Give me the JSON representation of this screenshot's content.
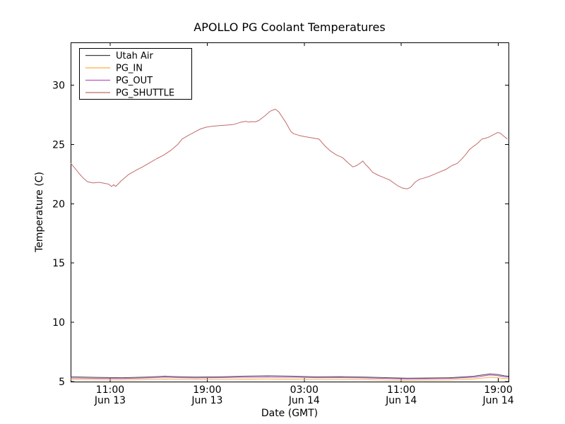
{
  "figure": {
    "background": "#ffffff",
    "spine_color": "#000000"
  },
  "chart_data": {
    "type": "line",
    "title": "APOLLO PG Coolant Temperatures",
    "xlabel": "Date (GMT)",
    "ylabel": "Temperature (C)",
    "x_unit": "hours since Jun 13 00:00 GMT",
    "xlim": [
      7.74,
      43.84
    ],
    "ylim": [
      5,
      33.6
    ],
    "grid": false,
    "legend_position": "upper-left",
    "x_ticks": [
      {
        "hour": 11,
        "time": "11:00",
        "date": "Jun 13"
      },
      {
        "hour": 19,
        "time": "19:00",
        "date": "Jun 13"
      },
      {
        "hour": 27,
        "time": "03:00",
        "date": "Jun 14"
      },
      {
        "hour": 35,
        "time": "11:00",
        "date": "Jun 14"
      },
      {
        "hour": 43,
        "time": "19:00",
        "date": "Jun 14"
      }
    ],
    "y_ticks": [
      5,
      10,
      15,
      20,
      25,
      30
    ],
    "series": [
      {
        "name": "Utah Air",
        "color": "#3f3f3f",
        "points": [
          [
            7.74,
            5.4
          ],
          [
            10,
            5.35
          ],
          [
            12,
            5.32
          ],
          [
            14,
            5.38
          ],
          [
            15.5,
            5.45
          ],
          [
            16.5,
            5.42
          ],
          [
            18,
            5.38
          ],
          [
            20,
            5.4
          ],
          [
            22,
            5.45
          ],
          [
            24,
            5.48
          ],
          [
            26,
            5.45
          ],
          [
            28,
            5.4
          ],
          [
            30,
            5.42
          ],
          [
            32,
            5.38
          ],
          [
            34,
            5.32
          ],
          [
            35.5,
            5.28
          ],
          [
            37,
            5.3
          ],
          [
            39,
            5.32
          ],
          [
            41,
            5.45
          ],
          [
            42.3,
            5.65
          ],
          [
            42.9,
            5.6
          ],
          [
            43.5,
            5.48
          ],
          [
            43.84,
            5.45
          ]
        ]
      },
      {
        "name": "PG_IN",
        "color": "#ffad42",
        "points": [
          [
            7.74,
            5.18
          ],
          [
            10,
            5.15
          ],
          [
            12,
            5.13
          ],
          [
            14,
            5.16
          ],
          [
            15.5,
            5.2
          ],
          [
            16.5,
            5.18
          ],
          [
            18,
            5.16
          ],
          [
            20,
            5.17
          ],
          [
            22,
            5.2
          ],
          [
            24,
            5.22
          ],
          [
            26,
            5.2
          ],
          [
            28,
            5.17
          ],
          [
            30,
            5.18
          ],
          [
            32,
            5.16
          ],
          [
            34,
            5.12
          ],
          [
            35.5,
            5.1
          ],
          [
            37,
            5.12
          ],
          [
            39,
            5.14
          ],
          [
            41,
            5.22
          ],
          [
            42.3,
            5.36
          ],
          [
            42.9,
            5.33
          ],
          [
            43.5,
            5.26
          ],
          [
            43.84,
            5.24
          ]
        ]
      },
      {
        "name": "PG_OUT",
        "color": "#b857c4",
        "points": [
          [
            7.74,
            5.3
          ],
          [
            10,
            5.27
          ],
          [
            12,
            5.25
          ],
          [
            14,
            5.3
          ],
          [
            15.5,
            5.35
          ],
          [
            16.5,
            5.33
          ],
          [
            18,
            5.3
          ],
          [
            20,
            5.32
          ],
          [
            22,
            5.36
          ],
          [
            24,
            5.38
          ],
          [
            26,
            5.36
          ],
          [
            28,
            5.32
          ],
          [
            30,
            5.33
          ],
          [
            32,
            5.3
          ],
          [
            34,
            5.25
          ],
          [
            35.5,
            5.22
          ],
          [
            37,
            5.24
          ],
          [
            39,
            5.26
          ],
          [
            41,
            5.36
          ],
          [
            42.3,
            5.54
          ],
          [
            42.9,
            5.5
          ],
          [
            43.5,
            5.4
          ],
          [
            43.84,
            5.38
          ]
        ]
      },
      {
        "name": "PG_SHUTTLE",
        "color": "#c26a6a",
        "points": [
          [
            7.74,
            23.42
          ],
          [
            8.09,
            23.0
          ],
          [
            8.44,
            22.55
          ],
          [
            8.79,
            22.15
          ],
          [
            9.14,
            21.85
          ],
          [
            9.6,
            21.75
          ],
          [
            10.07,
            21.8
          ],
          [
            10.53,
            21.72
          ],
          [
            10.88,
            21.65
          ],
          [
            11.11,
            21.45
          ],
          [
            11.29,
            21.6
          ],
          [
            11.46,
            21.45
          ],
          [
            11.93,
            21.95
          ],
          [
            12.51,
            22.45
          ],
          [
            13.09,
            22.8
          ],
          [
            13.67,
            23.1
          ],
          [
            14.26,
            23.45
          ],
          [
            14.84,
            23.8
          ],
          [
            15.42,
            24.1
          ],
          [
            16.0,
            24.5
          ],
          [
            16.58,
            25.0
          ],
          [
            16.93,
            25.45
          ],
          [
            17.17,
            25.6
          ],
          [
            17.51,
            25.8
          ],
          [
            17.98,
            26.05
          ],
          [
            18.44,
            26.3
          ],
          [
            18.91,
            26.45
          ],
          [
            19.38,
            26.52
          ],
          [
            19.96,
            26.58
          ],
          [
            20.54,
            26.62
          ],
          [
            21.12,
            26.67
          ],
          [
            21.7,
            26.85
          ],
          [
            22.17,
            26.95
          ],
          [
            22.4,
            26.88
          ],
          [
            22.63,
            26.92
          ],
          [
            22.98,
            26.9
          ],
          [
            23.27,
            27.02
          ],
          [
            23.74,
            27.4
          ],
          [
            24.2,
            27.8
          ],
          [
            24.61,
            27.97
          ],
          [
            24.9,
            27.75
          ],
          [
            25.48,
            26.85
          ],
          [
            25.89,
            26.1
          ],
          [
            26.12,
            25.9
          ],
          [
            26.59,
            25.75
          ],
          [
            27.05,
            25.65
          ],
          [
            27.64,
            25.55
          ],
          [
            28.22,
            25.45
          ],
          [
            28.68,
            24.9
          ],
          [
            29.15,
            24.45
          ],
          [
            29.67,
            24.1
          ],
          [
            30.14,
            23.9
          ],
          [
            30.6,
            23.45
          ],
          [
            31.01,
            23.1
          ],
          [
            31.3,
            23.2
          ],
          [
            31.59,
            23.4
          ],
          [
            31.83,
            23.6
          ],
          [
            32.06,
            23.3
          ],
          [
            32.35,
            23.0
          ],
          [
            32.64,
            22.65
          ],
          [
            33.1,
            22.4
          ],
          [
            33.57,
            22.2
          ],
          [
            34.04,
            22.0
          ],
          [
            34.38,
            21.75
          ],
          [
            34.73,
            21.5
          ],
          [
            35.08,
            21.32
          ],
          [
            35.49,
            21.25
          ],
          [
            35.78,
            21.4
          ],
          [
            36.13,
            21.8
          ],
          [
            36.48,
            22.05
          ],
          [
            36.83,
            22.15
          ],
          [
            37.29,
            22.3
          ],
          [
            37.76,
            22.5
          ],
          [
            38.22,
            22.7
          ],
          [
            38.69,
            22.9
          ],
          [
            39.15,
            23.2
          ],
          [
            39.62,
            23.4
          ],
          [
            39.97,
            23.75
          ],
          [
            40.32,
            24.15
          ],
          [
            40.61,
            24.55
          ],
          [
            40.9,
            24.8
          ],
          [
            41.25,
            25.05
          ],
          [
            41.65,
            25.45
          ],
          [
            41.89,
            25.5
          ],
          [
            42.18,
            25.6
          ],
          [
            42.47,
            25.75
          ],
          [
            42.76,
            25.9
          ],
          [
            42.93,
            26.0
          ],
          [
            43.16,
            25.95
          ],
          [
            43.45,
            25.7
          ],
          [
            43.75,
            25.45
          ]
        ]
      }
    ]
  }
}
